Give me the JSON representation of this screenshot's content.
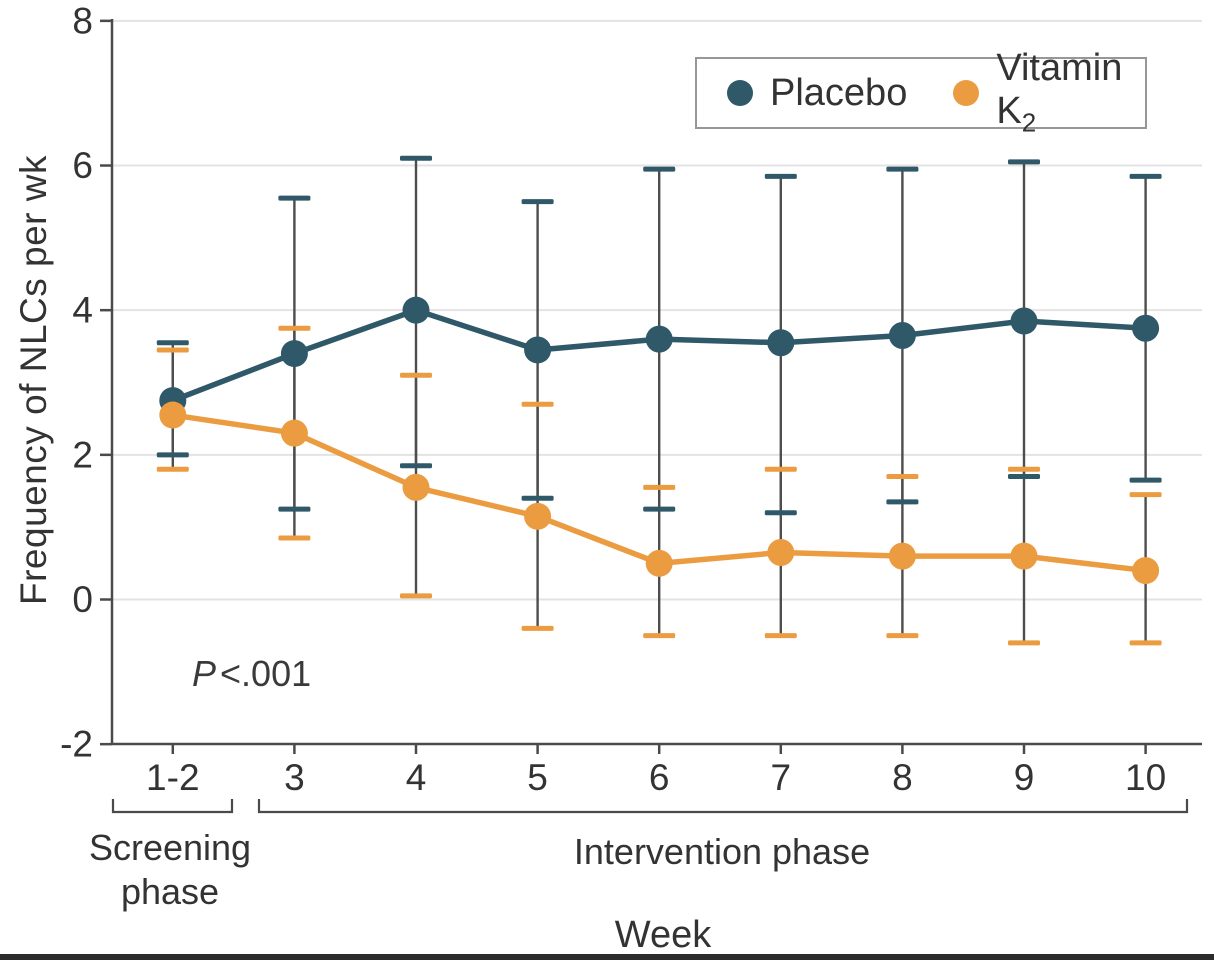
{
  "chart_data": {
    "type": "line",
    "title": "",
    "xlabel": "Week",
    "ylabel": "Frequency of NLCs per wk",
    "categories": [
      "1-2",
      "3",
      "4",
      "5",
      "6",
      "7",
      "8",
      "9",
      "10"
    ],
    "y_ticks": [
      8,
      6,
      4,
      2,
      0,
      -2
    ],
    "grid_values": [
      8,
      6,
      4,
      2,
      0
    ],
    "ylim": [
      -2,
      8
    ],
    "grid": "horizontal-only",
    "legend_position": "top-right",
    "error_bars": "yes, mean with upper/lower whiskers per point",
    "p_annotation": {
      "symbol": "P",
      "value": "<.001"
    },
    "phases": [
      {
        "label": "Screening phase",
        "label_line1": "Screening",
        "label_line2": "phase",
        "weeks": "1-2"
      },
      {
        "label": "Intervention phase",
        "weeks": "3-10"
      }
    ],
    "series": [
      {
        "key": "placebo",
        "name": "Placebo",
        "color": "#2f5969",
        "values": [
          2.75,
          3.4,
          4.0,
          3.45,
          3.6,
          3.55,
          3.65,
          3.85,
          3.75
        ],
        "err_upper": [
          3.55,
          5.55,
          6.1,
          5.5,
          5.95,
          5.85,
          5.95,
          6.05,
          5.85
        ],
        "err_lower": [
          2.0,
          1.25,
          1.85,
          1.4,
          1.25,
          1.2,
          1.35,
          1.7,
          1.65
        ]
      },
      {
        "key": "vitamin-k2",
        "name": "Vitamin K",
        "name_sub": "2",
        "color": "#ec9c40",
        "values": [
          2.55,
          2.3,
          1.55,
          1.15,
          0.5,
          0.65,
          0.6,
          0.6,
          0.4
        ],
        "err_upper": [
          3.45,
          3.75,
          3.1,
          2.7,
          1.55,
          1.8,
          1.7,
          1.8,
          1.45
        ],
        "err_lower": [
          1.8,
          0.85,
          0.05,
          -0.4,
          -0.5,
          -0.5,
          -0.5,
          -0.6,
          -0.6
        ]
      }
    ],
    "colors": {
      "text": "#333333",
      "axis": "#4a4a4a",
      "grid": "#e3e3e3",
      "error_line": "#4d4d4d",
      "legend_border": "#979797",
      "bottom_rule": "#2c2c2c"
    }
  }
}
